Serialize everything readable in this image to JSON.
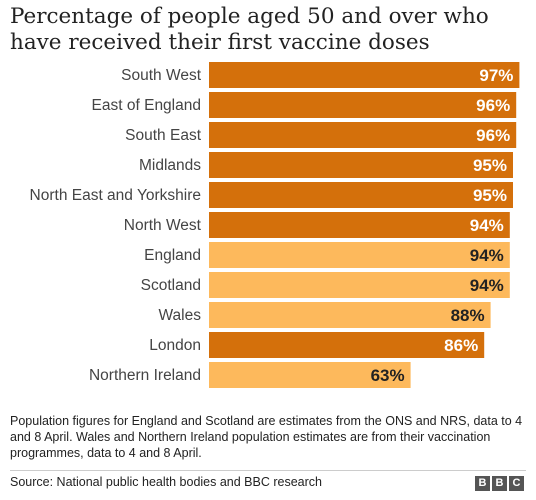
{
  "chart_data": {
    "type": "bar",
    "orientation": "horizontal",
    "title": "Percentage of people aged 50 and over who have received their first vaccine doses",
    "categories": [
      "South West",
      "East of England",
      "South East",
      "Midlands",
      "North East and Yorkshire",
      "North West",
      "England",
      "Scotland",
      "Wales",
      "London",
      "Northern Ireland"
    ],
    "values": [
      97,
      96,
      96,
      95,
      95,
      94,
      94,
      94,
      88,
      86,
      63
    ],
    "value_labels": [
      "97%",
      "96%",
      "96%",
      "95%",
      "95%",
      "94%",
      "94%",
      "94%",
      "88%",
      "86%",
      "63%"
    ],
    "bar_colors": [
      "#d4700b",
      "#d4700b",
      "#d4700b",
      "#d4700b",
      "#d4700b",
      "#d4700b",
      "#fdb95c",
      "#fdb95c",
      "#fdb95c",
      "#d4700b",
      "#fdb95c"
    ],
    "label_colors": [
      "#ffffff",
      "#ffffff",
      "#ffffff",
      "#ffffff",
      "#ffffff",
      "#ffffff",
      "#222222",
      "#222222",
      "#222222",
      "#ffffff",
      "#222222"
    ],
    "xlim": [
      0,
      100
    ],
    "grid": false,
    "legend": "none"
  },
  "note": "Population figures for England and Scotland are estimates from the ONS and NRS, data to 4 and 8 April. Wales and Northern Ireland population estimates are from their vaccination programmes, data to 4 and 8 April.",
  "source": "Source: National public health bodies and BBC research",
  "logo": [
    "B",
    "B",
    "C"
  ]
}
